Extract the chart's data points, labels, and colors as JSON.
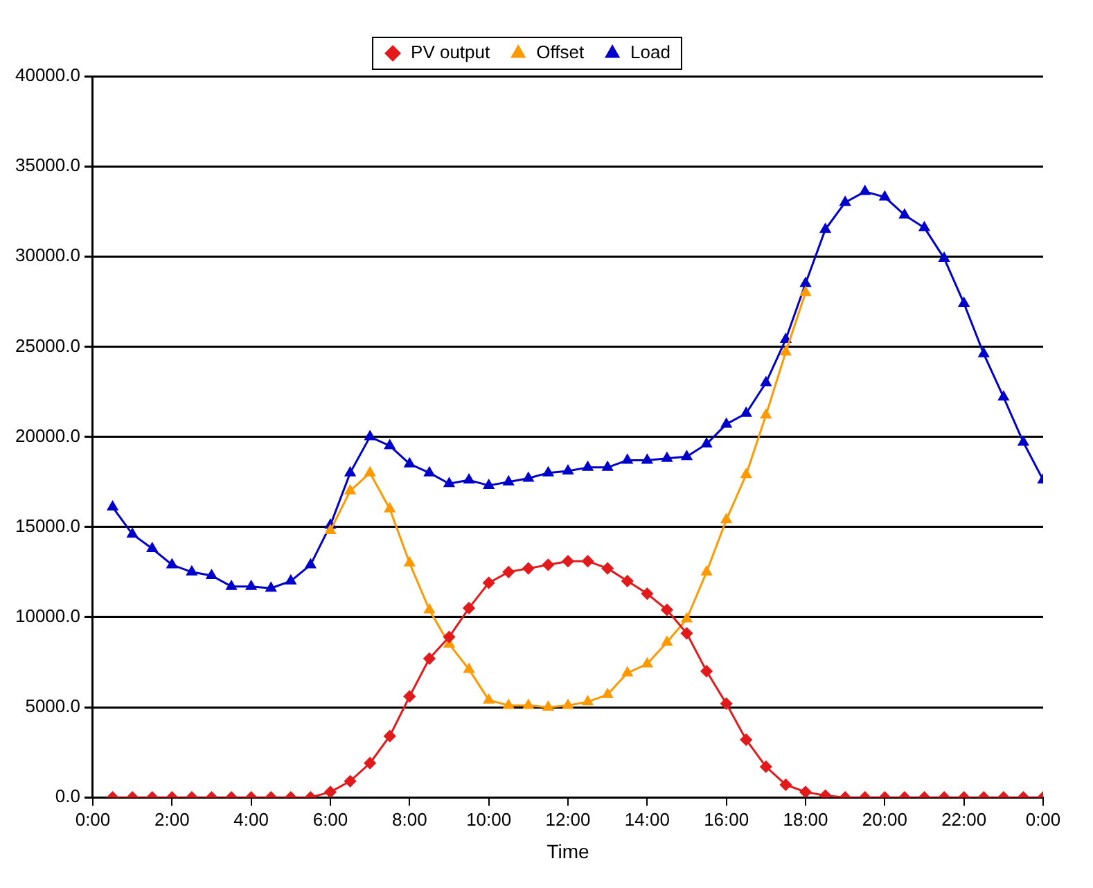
{
  "chart_data": {
    "type": "line",
    "xlabel": "Time",
    "x": [
      0.5,
      1,
      1.5,
      2,
      2.5,
      3,
      3.5,
      4,
      4.5,
      5,
      5.5,
      6,
      6.5,
      7,
      7.5,
      8,
      8.5,
      9,
      9.5,
      10,
      10.5,
      11,
      11.5,
      12,
      12.5,
      13,
      13.5,
      14,
      14.5,
      15,
      15.5,
      16,
      16.5,
      17,
      17.5,
      18,
      18.5,
      19,
      19.5,
      20,
      20.5,
      21,
      21.5,
      22,
      22.5,
      23,
      23.5,
      24
    ],
    "series": [
      {
        "name": "PV output",
        "color": "#e31a1c",
        "marker": "diamond",
        "values": [
          0,
          0,
          0,
          0,
          0,
          0,
          0,
          0,
          0,
          0,
          0,
          300,
          900,
          1900,
          3400,
          5600,
          7700,
          8900,
          10500,
          11900,
          12500,
          12700,
          12900,
          13100,
          13100,
          12700,
          12000,
          11300,
          10400,
          9100,
          7000,
          5200,
          3200,
          1700,
          700,
          300,
          100,
          0,
          0,
          0,
          0,
          0,
          0,
          0,
          0,
          0,
          0,
          0
        ]
      },
      {
        "name": "Offset",
        "color": "#ff9900",
        "marker": "triangle",
        "values": [
          null,
          null,
          null,
          null,
          null,
          null,
          null,
          null,
          null,
          null,
          null,
          14800,
          17000,
          18000,
          16000,
          13000,
          10400,
          8500,
          7100,
          5400,
          5100,
          5100,
          5000,
          5100,
          5300,
          5700,
          6900,
          7400,
          8600,
          9900,
          12500,
          15400,
          17900,
          21200,
          24700,
          28000,
          null,
          null,
          null,
          null,
          null,
          null,
          null,
          null,
          null,
          null,
          null,
          null
        ]
      },
      {
        "name": "Load",
        "color": "#0000cc",
        "marker": "triangle",
        "values": [
          16100,
          14600,
          13800,
          12900,
          12500,
          12300,
          11700,
          11700,
          11600,
          12000,
          12900,
          15100,
          18000,
          20000,
          19500,
          18500,
          18000,
          17400,
          17600,
          17300,
          17500,
          17700,
          18000,
          18100,
          18300,
          18300,
          18700,
          18700,
          18800,
          18900,
          19600,
          20700,
          21300,
          23000,
          25400,
          28500,
          31500,
          33000,
          33600,
          33300,
          32300,
          31600,
          29900,
          27400,
          24600,
          22200,
          19700,
          17600
        ]
      }
    ],
    "xlim": [
      0,
      24
    ],
    "xticks": [
      {
        "value": 0,
        "label": "0:00"
      },
      {
        "value": 2,
        "label": "2:00"
      },
      {
        "value": 4,
        "label": "4:00"
      },
      {
        "value": 6,
        "label": "6:00"
      },
      {
        "value": 8,
        "label": "8:00"
      },
      {
        "value": 10,
        "label": "10:00"
      },
      {
        "value": 12,
        "label": "12:00"
      },
      {
        "value": 14,
        "label": "14:00"
      },
      {
        "value": 16,
        "label": "16:00"
      },
      {
        "value": 18,
        "label": "18:00"
      },
      {
        "value": 20,
        "label": "20:00"
      },
      {
        "value": 22,
        "label": "22:00"
      },
      {
        "value": 24,
        "label": "0:00"
      }
    ],
    "ylim": [
      0,
      40000
    ],
    "yticks": [
      {
        "value": 0,
        "label": "0.0"
      },
      {
        "value": 5000,
        "label": "5000.0"
      },
      {
        "value": 10000,
        "label": "10000.0"
      },
      {
        "value": 15000,
        "label": "15000.0"
      },
      {
        "value": 20000,
        "label": "20000.0"
      },
      {
        "value": 25000,
        "label": "25000.0"
      },
      {
        "value": 30000,
        "label": "30000.0"
      },
      {
        "value": 35000,
        "label": "35000.0"
      },
      {
        "value": 40000,
        "label": "40000.0"
      }
    ],
    "grid": "y",
    "legend": "top",
    "line_style": "solid"
  }
}
